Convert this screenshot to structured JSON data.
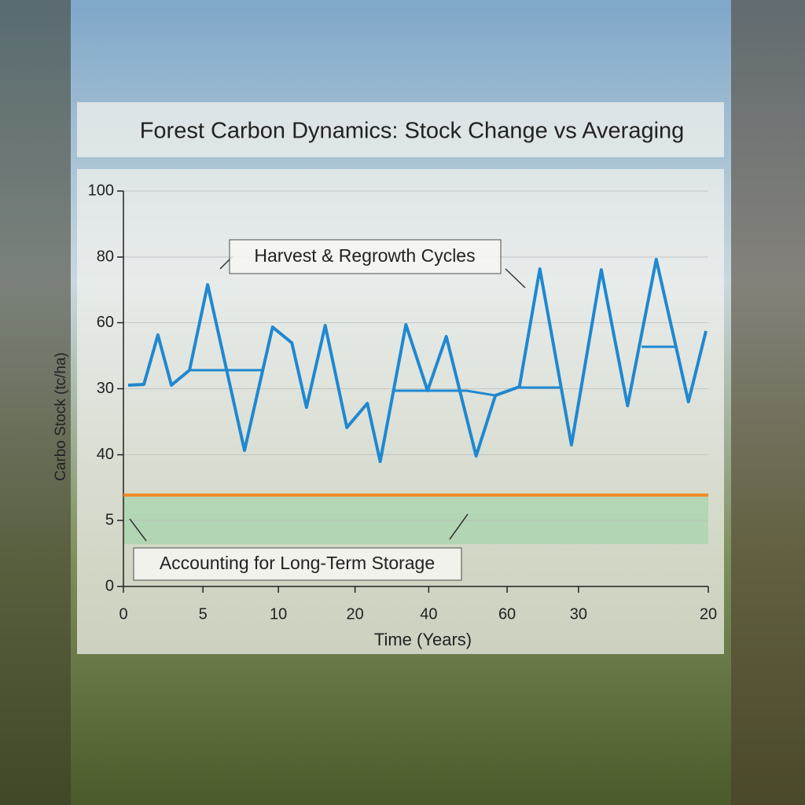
{
  "chart_data": {
    "type": "line",
    "title": "Forest Carbon Dynamics: Stock Change vs Averaging",
    "x_label": "Time (Years)",
    "y_label": "Carbo Stock (tc/ha)",
    "xlim": [
      0,
      100
    ],
    "ylim": [
      0,
      100
    ],
    "xticks": [
      0,
      {
        "value": 13.6,
        "label": "5"
      },
      {
        "value": 26.5,
        "label": "10"
      },
      {
        "value": 39.6,
        "label": "20"
      },
      {
        "value": 52.2,
        "label": "40"
      },
      {
        "value": 65.6,
        "label": "60"
      },
      {
        "value": 77.8,
        "label": "30"
      },
      {
        "value": 100,
        "label": "20"
      }
    ],
    "yticks": [
      0,
      {
        "value": 16.7,
        "label": "5"
      },
      {
        "value": 33.3,
        "label": "40"
      },
      {
        "value": 50,
        "label": "30"
      },
      {
        "value": 66.7,
        "label": "60"
      },
      {
        "value": 83.3,
        "label": "80"
      },
      100
    ],
    "grid": true,
    "series": [
      {
        "color": "#1f88d0",
        "x": [
          0.8,
          3.5,
          5.9,
          8.2,
          11.3,
          14.4,
          20.7,
          25.5,
          28.8,
          31.3,
          34.5,
          38.2,
          41.7,
          43.9,
          48.3,
          52.0,
          55.2,
          60.3,
          63.6,
          67.7,
          71.2,
          76.6,
          81.7,
          86.2,
          91.1,
          96.6,
          99.6
        ],
        "values": [
          50.9,
          51.1,
          63.6,
          50.9,
          54.7,
          76.3,
          34.4,
          65.6,
          61.6,
          45.3,
          66.0,
          40.2,
          46.3,
          31.6,
          66.2,
          49.5,
          63.2,
          33.0,
          48.3,
          50.5,
          80.3,
          35.8,
          80.1,
          45.7,
          82.7,
          46.7,
          64.6
        ]
      },
      {
        "color": "#1f88d0",
        "x": [
          11.3,
          23.7,
          null,
          46.0,
          58.7,
          63.6,
          null,
          67.7,
          74.7,
          null,
          88.6,
          94.4
        ],
        "values": [
          54.7,
          54.7,
          null,
          49.5,
          49.5,
          48.3,
          null,
          50.3,
          50.3,
          null,
          60.6,
          60.6
        ]
      }
    ],
    "threshold": {
      "value": 23.1,
      "color": "#f08a24"
    },
    "band": {
      "values": [
        10.7,
        22.7
      ],
      "color": "#8fd19e"
    },
    "annotations": [
      "Harvest & Regrowth Cycles",
      "Accounting for Long-Term Storage"
    ]
  }
}
